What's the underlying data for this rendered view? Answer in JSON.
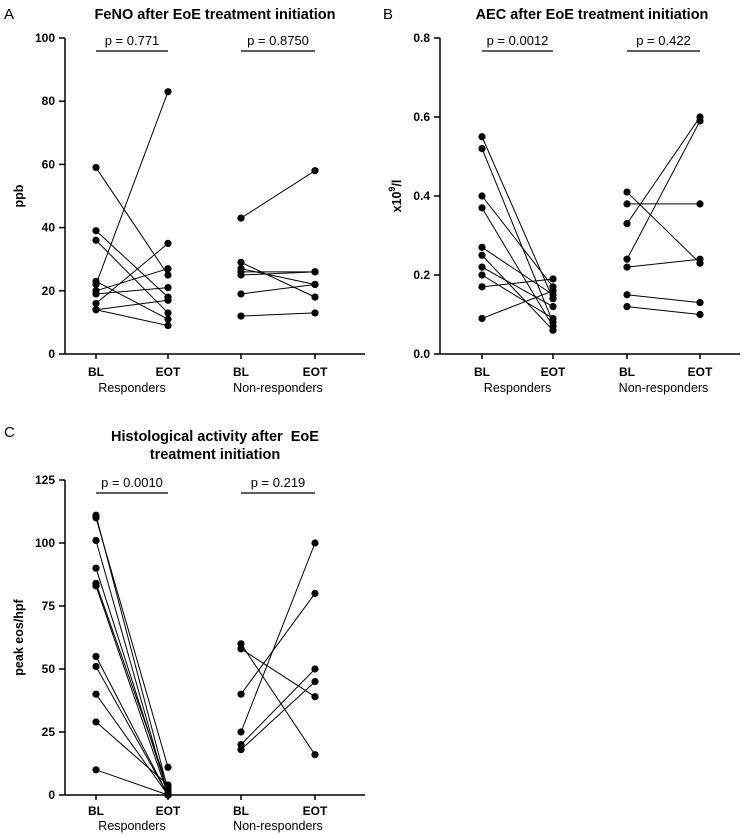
{
  "figure": {
    "colors": {
      "ink": "#000000",
      "background": "#ffffff"
    }
  },
  "chart_data": [
    {
      "type": "scatter",
      "panel_label": "A",
      "title_lines": [
        "FeNO after EoE treatment initiation"
      ],
      "ylabel": "ppb",
      "ylim": [
        0,
        100
      ],
      "yticks": [
        0,
        20,
        40,
        60,
        80,
        100
      ],
      "ytick_labels": [
        "0",
        "20",
        "40",
        "60",
        "80",
        "100"
      ],
      "conditions": [
        "BL",
        "EOT"
      ],
      "groups": [
        {
          "name": "Responders",
          "p_value": "p = 0.771",
          "pairs": [
            [
              59,
              25
            ],
            [
              39,
              18
            ],
            [
              36,
              13
            ],
            [
              23,
              11
            ],
            [
              22,
              83
            ],
            [
              20,
              27
            ],
            [
              19,
              21
            ],
            [
              16,
              35
            ],
            [
              14,
              17
            ],
            [
              14,
              9
            ]
          ]
        },
        {
          "name": "Non-responders",
          "p_value": "p = 0.8750",
          "pairs": [
            [
              43,
              58
            ],
            [
              29,
              18
            ],
            [
              27,
              22
            ],
            [
              26,
              26
            ],
            [
              25,
              26
            ],
            [
              19,
              22
            ],
            [
              12,
              13
            ]
          ]
        }
      ]
    },
    {
      "type": "scatter",
      "panel_label": "B",
      "title_lines": [
        "AEC after EoE treatment initiation"
      ],
      "ylabel": "x10",
      "ylabel_superscript": "9",
      "ylabel_suffix": "/l",
      "ylim": [
        0,
        0.8
      ],
      "yticks": [
        0,
        0.2,
        0.4,
        0.6,
        0.8
      ],
      "ytick_labels": [
        "0.0",
        "0.2",
        "0.4",
        "0.6",
        "0.8"
      ],
      "conditions": [
        "BL",
        "EOT"
      ],
      "groups": [
        {
          "name": "Responders",
          "p_value": "p = 0.0012",
          "pairs": [
            [
              0.55,
              0.14
            ],
            [
              0.52,
              0.08
            ],
            [
              0.4,
              0.17
            ],
            [
              0.37,
              0.07
            ],
            [
              0.27,
              0.15
            ],
            [
              0.25,
              0.06
            ],
            [
              0.22,
              0.12
            ],
            [
              0.2,
              0.09
            ],
            [
              0.17,
              0.19
            ],
            [
              0.09,
              0.16
            ]
          ]
        },
        {
          "name": "Non-responders",
          "p_value": "p = 0.422",
          "pairs": [
            [
              0.41,
              0.23
            ],
            [
              0.38,
              0.38
            ],
            [
              0.33,
              0.6
            ],
            [
              0.24,
              0.59
            ],
            [
              0.22,
              0.24
            ],
            [
              0.15,
              0.13
            ],
            [
              0.12,
              0.1
            ]
          ]
        }
      ]
    },
    {
      "type": "scatter",
      "panel_label": "C",
      "title_lines": [
        "Histological activity after  EoE",
        "treatment initiation"
      ],
      "ylabel": "peak eos/hpf",
      "ylim": [
        0,
        125
      ],
      "yticks": [
        0,
        25,
        50,
        75,
        100,
        125
      ],
      "ytick_labels": [
        "0",
        "25",
        "50",
        "75",
        "100",
        "125"
      ],
      "conditions": [
        "BL",
        "EOT"
      ],
      "groups": [
        {
          "name": "Responders",
          "p_value": "p = 0.0010",
          "pairs": [
            [
              111,
              2
            ],
            [
              110,
              11
            ],
            [
              101,
              0
            ],
            [
              90,
              1
            ],
            [
              84,
              3
            ],
            [
              83,
              0
            ],
            [
              55,
              0
            ],
            [
              51,
              0
            ],
            [
              40,
              0
            ],
            [
              29,
              4
            ],
            [
              10,
              0
            ]
          ]
        },
        {
          "name": "Non-responders",
          "p_value": "p = 0.219",
          "pairs": [
            [
              60,
              16
            ],
            [
              58,
              39
            ],
            [
              40,
              80
            ],
            [
              25,
              100
            ],
            [
              20,
              50
            ],
            [
              18,
              45
            ]
          ]
        }
      ]
    }
  ]
}
